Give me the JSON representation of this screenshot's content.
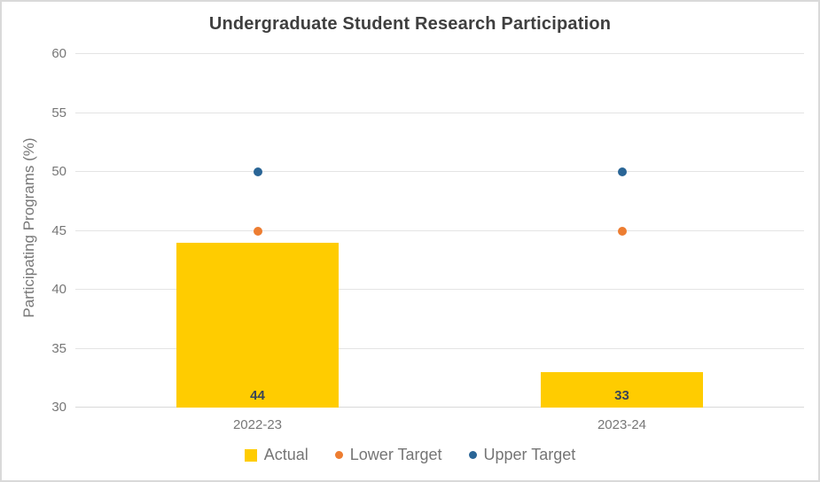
{
  "chart": {
    "title": "Undergraduate Student Research Participation",
    "y_axis_title": "Participating Programs (%)",
    "legend": [
      {
        "label": "Actual",
        "marker": "square",
        "color": "#FFCC00"
      },
      {
        "label": "Lower Target",
        "marker": "dot",
        "color": "#ED7D31"
      },
      {
        "label": "Upper Target",
        "marker": "dot",
        "color": "#2A6596"
      }
    ]
  },
  "chart_data": {
    "type": "bar",
    "categories": [
      "2022-23",
      "2023-24"
    ],
    "series": [
      {
        "name": "Actual",
        "type": "bar",
        "color": "#FFCC00",
        "values": [
          44,
          33
        ],
        "data_labels": [
          "44",
          "33"
        ]
      },
      {
        "name": "Lower Target",
        "type": "scatter",
        "color": "#ED7D31",
        "values": [
          45,
          45
        ]
      },
      {
        "name": "Upper Target",
        "type": "scatter",
        "color": "#2A6596",
        "values": [
          50,
          50
        ]
      }
    ],
    "title": "Undergraduate Student Research Participation",
    "xlabel": "",
    "ylabel": "Participating Programs (%)",
    "ylim": [
      30,
      60
    ],
    "yticks": [
      30,
      35,
      40,
      45,
      50,
      55,
      60
    ],
    "grid": true,
    "legend_position": "bottom"
  },
  "colors": {
    "bar_fill": "#FFCC00",
    "lower_target": "#ED7D31",
    "upper_target": "#2A6596",
    "title_text": "#3F3F3F",
    "axis_text": "#777777",
    "bar_label_text": "#3A4557",
    "gridline": "#E4E4E4",
    "panel_border": "#D9D9D9"
  }
}
